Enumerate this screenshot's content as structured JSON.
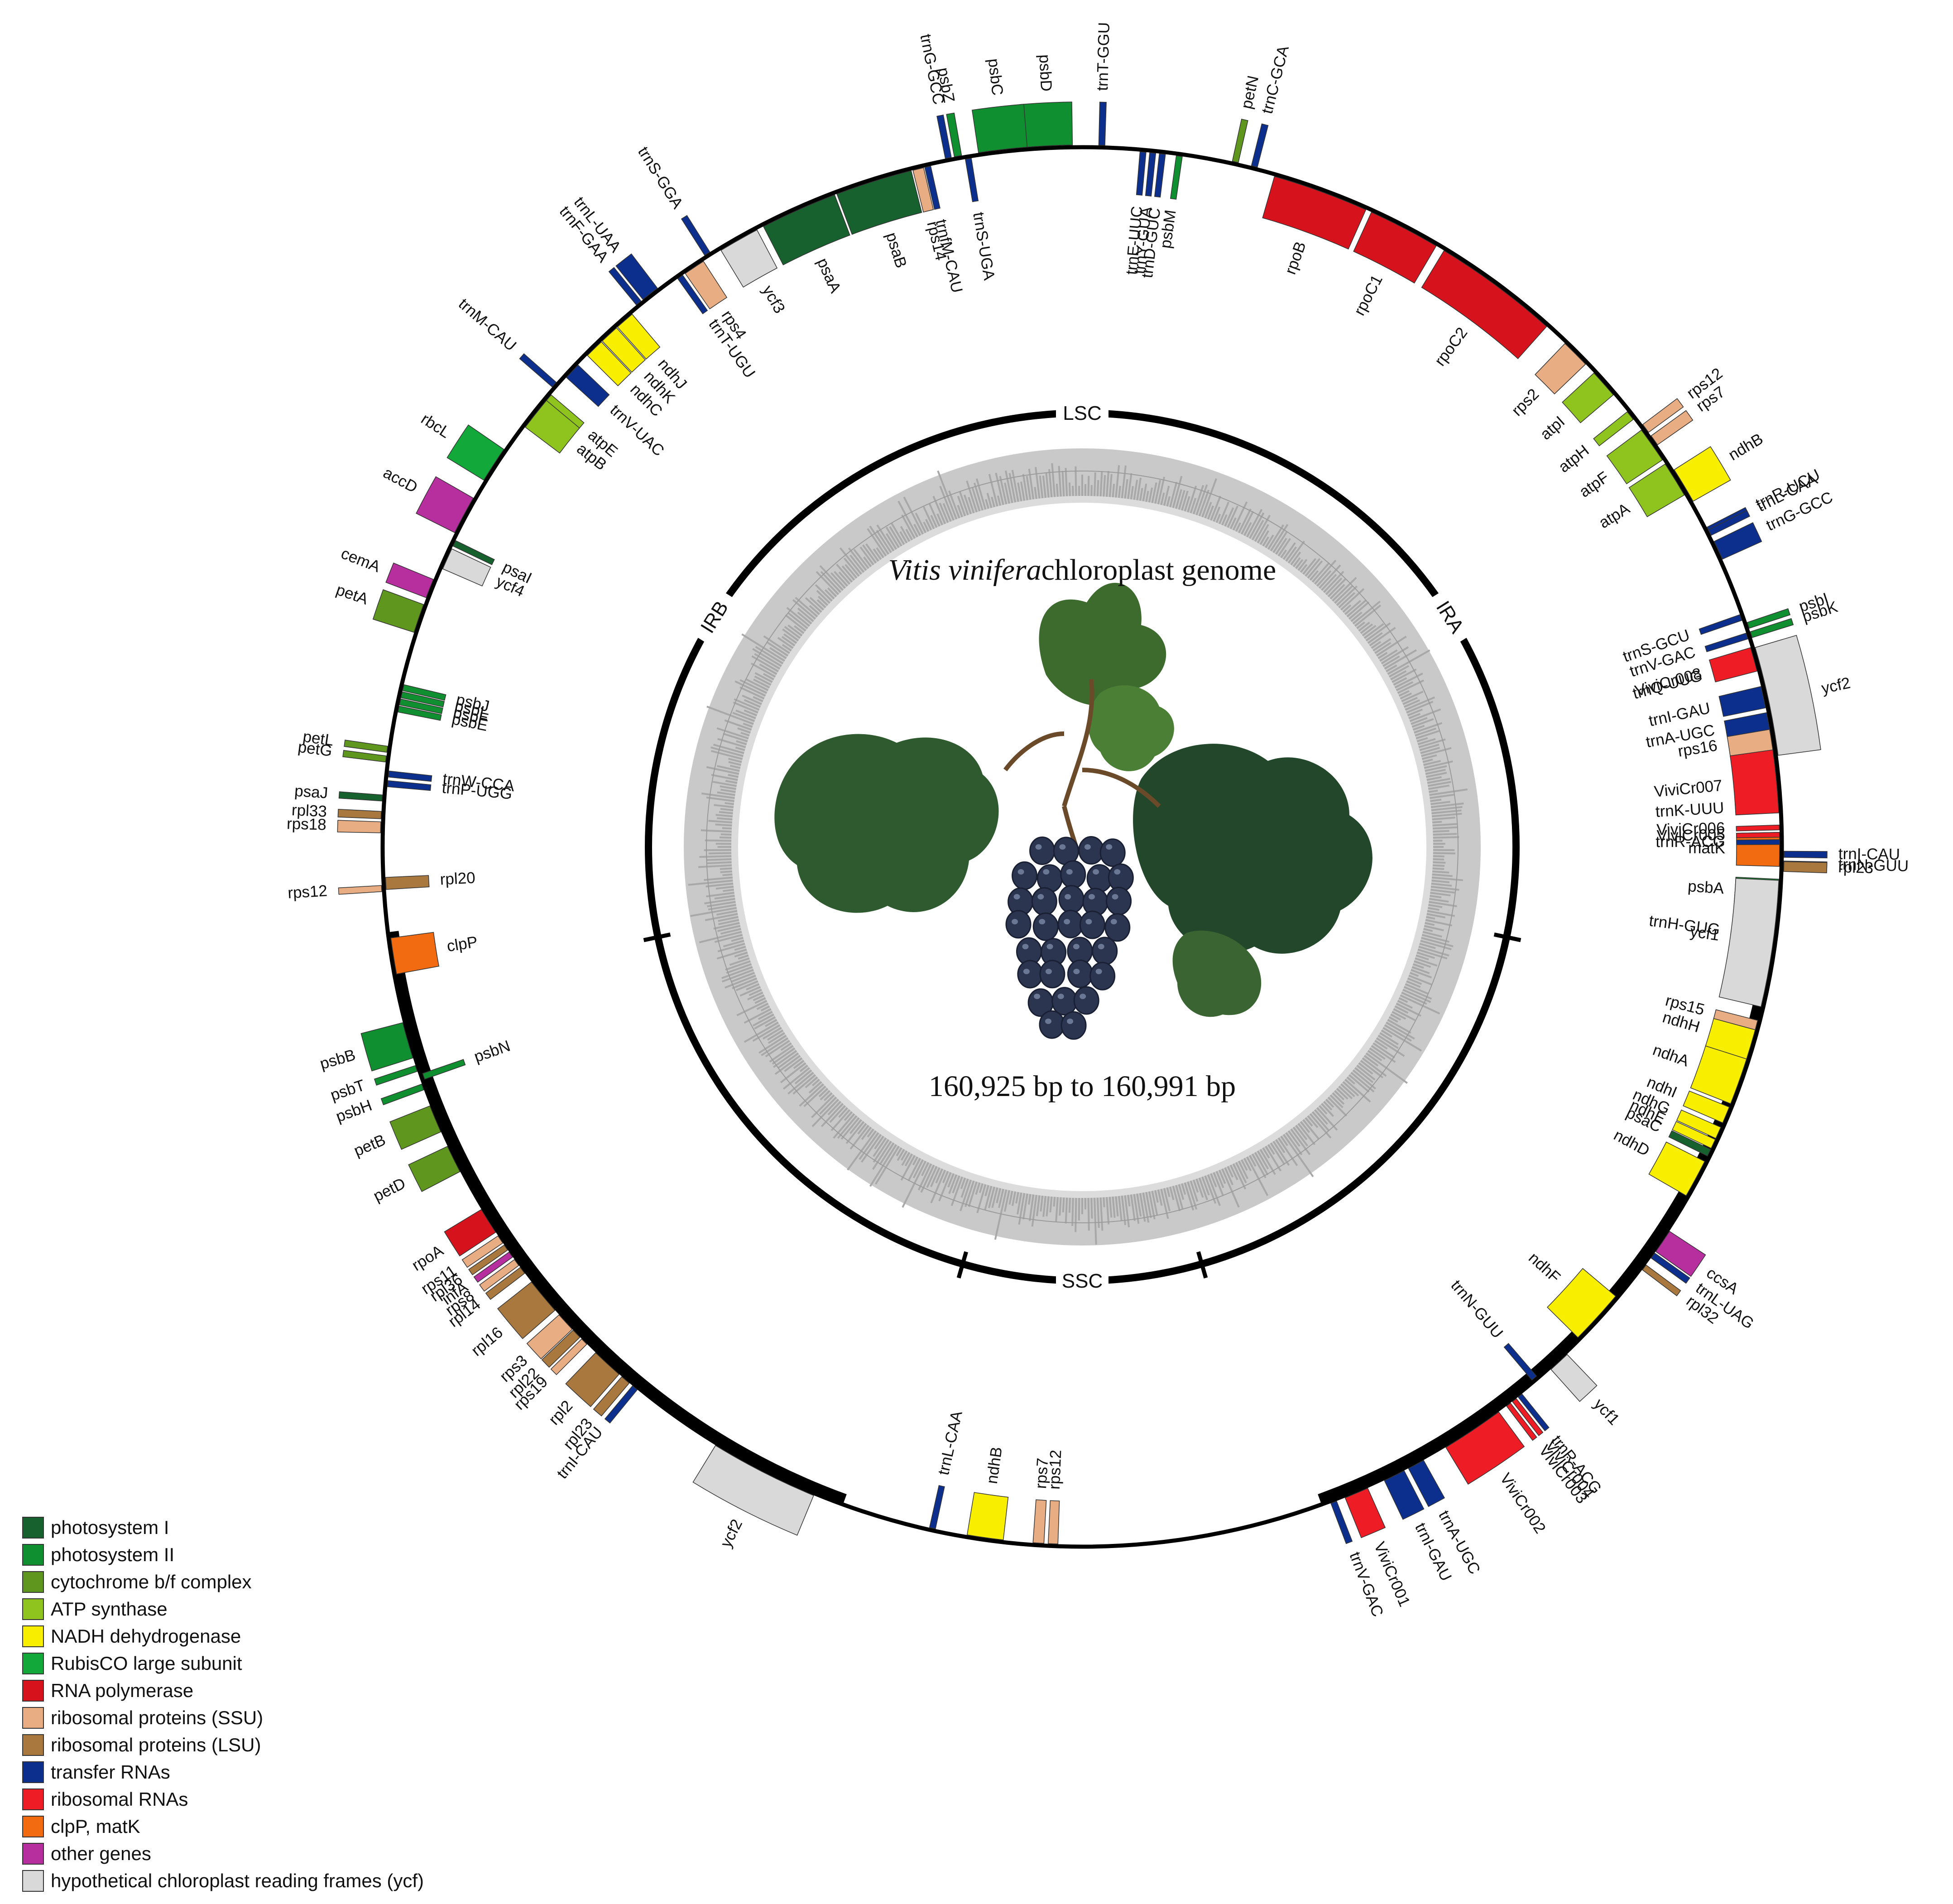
{
  "title": {
    "species": "Vitis vinifera",
    "rest": "chloroplast genome"
  },
  "size_label": "160,925 bp to 160,991 bp",
  "regions": [
    {
      "name": "LSC",
      "start": 0,
      "end": 0.68
    },
    {
      "name": "IRA",
      "start": 0.68,
      "end": 0.84
    },
    {
      "name": "SSC",
      "start": 0.84,
      "end": 1.16
    },
    {
      "name": "IRB",
      "start": 1.16,
      "end": 1.32
    }
  ],
  "categories": [
    {
      "key": "ps1",
      "label": "photosystem I",
      "color": "#17612f"
    },
    {
      "key": "ps2",
      "label": "photosystem II",
      "color": "#0f8f2f"
    },
    {
      "key": "cyt",
      "label": "cytochrome b/f complex",
      "color": "#5e961e"
    },
    {
      "key": "atp",
      "label": "ATP synthase",
      "color": "#8fc41f"
    },
    {
      "key": "ndh",
      "label": "NADH dehydrogenase",
      "color": "#f8ee00"
    },
    {
      "key": "rbc",
      "label": "RubisCO large subunit",
      "color": "#12a83a"
    },
    {
      "key": "rpo",
      "label": "RNA polymerase",
      "color": "#d6131c"
    },
    {
      "key": "ssu",
      "label": "ribosomal proteins (SSU)",
      "color": "#e8ad82"
    },
    {
      "key": "lsu",
      "label": "ribosomal proteins (LSU)",
      "color": "#a8783f"
    },
    {
      "key": "trna",
      "label": "transfer RNAs",
      "color": "#0c2f8e"
    },
    {
      "key": "rrna",
      "label": "ribosomal RNAs",
      "color": "#ee1c24"
    },
    {
      "key": "clp",
      "label": "clpP, matK",
      "color": "#f36b10"
    },
    {
      "key": "oth",
      "label": "other genes",
      "color": "#b72f9e"
    },
    {
      "key": "ycf",
      "label": "hypothetical chloroplast reading frames (ycf)",
      "color": "#d9d9d9"
    }
  ],
  "genes": [
    {
      "name": "trnH-GUG",
      "cat": "trna",
      "a": 97.5,
      "w": 0.5,
      "side": "in"
    },
    {
      "name": "psbA",
      "cat": "ps2",
      "a": 93.8,
      "w": 2.3,
      "side": "in"
    },
    {
      "name": "trnK-UUU",
      "cat": "trna",
      "a": 86.6,
      "w": 0.7,
      "side": "in"
    },
    {
      "name": "matK",
      "cat": "clp",
      "a": 90.2,
      "w": 2.8,
      "side": "in"
    },
    {
      "name": "rps16",
      "cat": "ssu",
      "a": 81.0,
      "w": 2.2,
      "side": "in"
    },
    {
      "name": "trnQ-UUG",
      "cat": "trna",
      "a": 74.6,
      "w": 0.5,
      "side": "in"
    },
    {
      "name": "psbK",
      "cat": "ps2",
      "a": 72.4,
      "w": 0.5,
      "side": "out"
    },
    {
      "name": "psbI",
      "cat": "ps2",
      "a": 71.6,
      "w": 0.5,
      "side": "out"
    },
    {
      "name": "trnS-GCU",
      "cat": "trna",
      "a": 70.8,
      "w": 0.5,
      "side": "in"
    },
    {
      "name": "trnG-GCC",
      "cat": "trna",
      "a": 65.0,
      "w": 1.6,
      "side": "out"
    },
    {
      "name": "trnR-UCU",
      "cat": "trna",
      "a": 63.2,
      "w": 0.6,
      "side": "out"
    },
    {
      "name": "atpA",
      "cat": "atp",
      "a": 58.2,
      "w": 3.0,
      "side": "in"
    },
    {
      "name": "atpF",
      "cat": "atp",
      "a": 54.8,
      "w": 3.0,
      "side": "in"
    },
    {
      "name": "atpH",
      "cat": "atp",
      "a": 51.8,
      "w": 0.8,
      "side": "in"
    },
    {
      "name": "atpI",
      "cat": "atp",
      "a": 48.4,
      "w": 2.4,
      "side": "in"
    },
    {
      "name": "rps2",
      "cat": "ssu",
      "a": 45.0,
      "w": 2.4,
      "side": "in"
    },
    {
      "name": "rpoC2",
      "cat": "rpo",
      "a": 36.5,
      "w": 10.5,
      "side": "in"
    },
    {
      "name": "rpoC1",
      "cat": "rpo",
      "a": 27.5,
      "w": 6.0,
      "side": "in"
    },
    {
      "name": "rpoB",
      "cat": "rpo",
      "a": 20.0,
      "w": 8.0,
      "side": "in"
    },
    {
      "name": "trnC-GCA",
      "cat": "trna",
      "a": 14.2,
      "w": 0.5,
      "side": "out"
    },
    {
      "name": "petN",
      "cat": "cyt",
      "a": 12.6,
      "w": 0.5,
      "side": "out"
    },
    {
      "name": "psbM",
      "cat": "ps2",
      "a": 8.0,
      "w": 0.5,
      "side": "in"
    },
    {
      "name": "trnD-GUC",
      "cat": "trna",
      "a": 6.6,
      "w": 0.5,
      "side": "in"
    },
    {
      "name": "trnY-GUA",
      "cat": "trna",
      "a": 5.8,
      "w": 0.5,
      "side": "in"
    },
    {
      "name": "trnE-UUC",
      "cat": "trna",
      "a": 5.0,
      "w": 0.5,
      "side": "in"
    },
    {
      "name": "trnT-GGU",
      "cat": "trna",
      "a": 1.6,
      "w": 0.5,
      "side": "out"
    },
    {
      "name": "psbD",
      "cat": "ps2",
      "a": -2.8,
      "w": 4.0,
      "side": "out"
    },
    {
      "name": "psbC",
      "cat": "ps2",
      "a": -6.5,
      "w": 4.0,
      "side": "out"
    },
    {
      "name": "trnS-UGA",
      "cat": "trna",
      "a": -9.4,
      "w": 0.5,
      "side": "in"
    },
    {
      "name": "psbZ",
      "cat": "ps2",
      "a": -10.2,
      "w": 0.6,
      "side": "out"
    },
    {
      "name": "trnG-GCC",
      "cat": "trna",
      "a": -11.0,
      "w": 0.5,
      "side": "out"
    },
    {
      "name": "trnfM-CAU",
      "cat": "trna",
      "a": -12.8,
      "w": 0.5,
      "side": "in"
    },
    {
      "name": "rps14",
      "cat": "ssu",
      "a": -13.6,
      "w": 0.9,
      "side": "in"
    },
    {
      "name": "psaB",
      "cat": "ps1",
      "a": -17.4,
      "w": 6.4,
      "side": "in"
    },
    {
      "name": "psaA",
      "cat": "ps1",
      "a": -24.0,
      "w": 6.4,
      "side": "in"
    },
    {
      "name": "ycf3",
      "cat": "ycf",
      "a": -29.5,
      "w": 3.4,
      "side": "in"
    },
    {
      "name": "trnS-GGA",
      "cat": "trna",
      "a": -32.3,
      "w": 0.5,
      "side": "out"
    },
    {
      "name": "rps4",
      "cat": "ssu",
      "a": -33.8,
      "w": 1.8,
      "side": "in"
    },
    {
      "name": "trnT-UGU",
      "cat": "trna",
      "a": -35.2,
      "w": 0.5,
      "side": "in"
    },
    {
      "name": "trnL-UAA",
      "cat": "trna",
      "a": -38.0,
      "w": 1.5,
      "side": "out"
    },
    {
      "name": "trnF-GAA",
      "cat": "trna",
      "a": -39.2,
      "w": 0.5,
      "side": "out"
    },
    {
      "name": "ndhJ",
      "cat": "ndh",
      "a": -41.0,
      "w": 1.6,
      "side": "in"
    },
    {
      "name": "ndhK",
      "cat": "ndh",
      "a": -42.7,
      "w": 1.6,
      "side": "in"
    },
    {
      "name": "ndhC",
      "cat": "ndh",
      "a": -44.4,
      "w": 1.6,
      "side": "in"
    },
    {
      "name": "trnV-UAC",
      "cat": "trna",
      "a": -47.0,
      "w": 1.4,
      "side": "in"
    },
    {
      "name": "trnM-CAU",
      "cat": "trna",
      "a": -48.8,
      "w": 0.5,
      "side": "out"
    },
    {
      "name": "atpE",
      "cat": "atp",
      "a": -50.0,
      "w": 0.8,
      "side": "in"
    },
    {
      "name": "atpB",
      "cat": "atp",
      "a": -51.6,
      "w": 2.8,
      "side": "in"
    },
    {
      "name": "rbcL",
      "cat": "rbc",
      "a": -57.0,
      "w": 3.0,
      "side": "out"
    },
    {
      "name": "accD",
      "cat": "oth",
      "a": -61.8,
      "w": 3.2,
      "side": "out"
    },
    {
      "name": "psaI",
      "cat": "ps1",
      "a": -64.2,
      "w": 0.5,
      "side": "in"
    },
    {
      "name": "ycf4",
      "cat": "ycf",
      "a": -65.6,
      "w": 1.8,
      "side": "in"
    },
    {
      "name": "cemA",
      "cat": "oth",
      "a": -68.4,
      "w": 1.6,
      "side": "out"
    },
    {
      "name": "petA",
      "cat": "cyt",
      "a": -71.0,
      "w": 2.4,
      "side": "out"
    },
    {
      "name": "psbJ",
      "cat": "ps2",
      "a": -76.8,
      "w": 0.5,
      "side": "in"
    },
    {
      "name": "psbL",
      "cat": "ps2",
      "a": -77.4,
      "w": 0.5,
      "side": "in"
    },
    {
      "name": "psbF",
      "cat": "ps2",
      "a": -78.0,
      "w": 0.5,
      "side": "in"
    },
    {
      "name": "psbE",
      "cat": "ps2",
      "a": -78.6,
      "w": 0.5,
      "side": "in"
    },
    {
      "name": "petL",
      "cat": "cyt",
      "a": -82.0,
      "w": 0.5,
      "side": "out"
    },
    {
      "name": "petG",
      "cat": "cyt",
      "a": -82.8,
      "w": 0.5,
      "side": "out"
    },
    {
      "name": "trnW-CCA",
      "cat": "trna",
      "a": -84.0,
      "w": 0.5,
      "side": "in"
    },
    {
      "name": "trnP-UGG",
      "cat": "trna",
      "a": -84.8,
      "w": 0.5,
      "side": "in"
    },
    {
      "name": "psaJ",
      "cat": "ps1",
      "a": -86.0,
      "w": 0.5,
      "side": "out"
    },
    {
      "name": "rpl33",
      "cat": "lsu",
      "a": -87.4,
      "w": 0.6,
      "side": "out"
    },
    {
      "name": "rps18",
      "cat": "ssu",
      "a": -88.4,
      "w": 0.9,
      "side": "out"
    },
    {
      "name": "rpl20",
      "cat": "lsu",
      "a": -93.0,
      "w": 1.0,
      "side": "in"
    },
    {
      "name": "rps12",
      "cat": "ssu",
      "a": -93.4,
      "w": 0.5,
      "side": "out"
    },
    {
      "name": "clpP",
      "cat": "clp",
      "a": -99.0,
      "w": 3.0,
      "side": "in"
    },
    {
      "name": "psbB",
      "cat": "ps2",
      "a": -106.0,
      "w": 3.0,
      "side": "out"
    },
    {
      "name": "psbT",
      "cat": "ps2",
      "a": -108.4,
      "w": 0.5,
      "side": "out"
    },
    {
      "name": "psbN",
      "cat": "ps2",
      "a": -109.2,
      "w": 0.5,
      "side": "in"
    },
    {
      "name": "psbH",
      "cat": "ps2",
      "a": -110.0,
      "w": 0.5,
      "side": "out"
    },
    {
      "name": "petB",
      "cat": "cyt",
      "a": -112.8,
      "w": 2.3,
      "side": "out"
    },
    {
      "name": "petD",
      "cat": "cyt",
      "a": -116.4,
      "w": 2.3,
      "side": "out"
    },
    {
      "name": "rpoA",
      "cat": "rpo",
      "a": -122.2,
      "w": 2.2,
      "side": "out"
    },
    {
      "name": "rps11",
      "cat": "ssu",
      "a": -124.0,
      "w": 0.7,
      "side": "out"
    },
    {
      "name": "rpl36",
      "cat": "lsu",
      "a": -124.8,
      "w": 0.5,
      "side": "out"
    },
    {
      "name": "infA",
      "cat": "oth",
      "a": -125.5,
      "w": 0.5,
      "side": "out"
    },
    {
      "name": "rps8",
      "cat": "ssu",
      "a": -126.3,
      "w": 0.6,
      "side": "out"
    },
    {
      "name": "rpl14",
      "cat": "lsu",
      "a": -127.1,
      "w": 0.6,
      "side": "out"
    },
    {
      "name": "rpl16",
      "cat": "lsu",
      "a": -129.8,
      "w": 3.0,
      "side": "out"
    },
    {
      "name": "rps3",
      "cat": "ssu",
      "a": -132.6,
      "w": 1.6,
      "side": "out"
    },
    {
      "name": "rpl22",
      "cat": "lsu",
      "a": -133.9,
      "w": 0.8,
      "side": "out"
    },
    {
      "name": "rps19",
      "cat": "ssu",
      "a": -134.8,
      "w": 0.6,
      "side": "out"
    },
    {
      "name": "rpl2",
      "cat": "lsu",
      "a": -137.4,
      "w": 2.6,
      "side": "out"
    },
    {
      "name": "rpl23",
      "cat": "lsu",
      "a": -139.4,
      "w": 0.8,
      "side": "out"
    },
    {
      "name": "trnI-CAU",
      "cat": "trna",
      "a": -140.4,
      "w": 0.5,
      "side": "out"
    },
    {
      "name": "ycf2",
      "cat": "ycf",
      "a": -153.0,
      "w": 9.0,
      "side": "out"
    },
    {
      "name": "trnL-CAA",
      "cat": "trna",
      "a": -167.6,
      "w": 0.5,
      "side": "in"
    },
    {
      "name": "ndhB",
      "cat": "ndh",
      "a": -172.0,
      "w": 3.0,
      "side": "in"
    },
    {
      "name": "rps7",
      "cat": "ssu",
      "a": -176.4,
      "w": 0.9,
      "side": "in"
    },
    {
      "name": "rps12",
      "cat": "ssu",
      "a": -177.6,
      "w": 0.8,
      "side": "in"
    },
    {
      "name": "trnV-GAC",
      "cat": "trna",
      "a": 159.0,
      "w": 0.5,
      "side": "out"
    },
    {
      "name": "ViviCr001",
      "cat": "rrna",
      "a": 157.0,
      "w": 2.0,
      "side": "out"
    },
    {
      "name": "trnI-GAU",
      "cat": "trna",
      "a": 153.6,
      "w": 1.8,
      "side": "out"
    },
    {
      "name": "trnA-UGC",
      "cat": "trna",
      "a": 151.6,
      "w": 1.4,
      "side": "out"
    },
    {
      "name": "ViviCr002",
      "cat": "rrna",
      "a": 146.2,
      "w": 5.2,
      "side": "out"
    },
    {
      "name": "ViviCr003",
      "cat": "rrna",
      "a": 142.6,
      "w": 0.4,
      "side": "out"
    },
    {
      "name": "ViviCr004",
      "cat": "rrna",
      "a": 142.0,
      "w": 0.4,
      "side": "out"
    },
    {
      "name": "trnR-ACG",
      "cat": "trna",
      "a": 141.4,
      "w": 0.4,
      "side": "out"
    },
    {
      "name": "trnN-GUU",
      "cat": "trna",
      "a": 139.6,
      "w": 0.5,
      "side": "in"
    },
    {
      "name": "ycf1",
      "cat": "ycf",
      "a": 137.2,
      "w": 1.8,
      "side": "out"
    },
    {
      "name": "ndhF",
      "cat": "ndh",
      "a": 132.4,
      "w": 4.6,
      "side": "in"
    },
    {
      "name": "rpl32",
      "cat": "lsu",
      "a": 126.8,
      "w": 0.5,
      "side": "out"
    },
    {
      "name": "trnL-UAG",
      "cat": "trna",
      "a": 125.6,
      "w": 0.5,
      "side": "out"
    },
    {
      "name": "ccsA",
      "cat": "oth",
      "a": 124.2,
      "w": 2.0,
      "side": "out"
    },
    {
      "name": "ndhD",
      "cat": "ndh",
      "a": 118.4,
      "w": 3.2,
      "side": "in"
    },
    {
      "name": "psaC",
      "cat": "ps1",
      "a": 116.0,
      "w": 0.6,
      "side": "in"
    },
    {
      "name": "ndhE",
      "cat": "ndh",
      "a": 115.2,
      "w": 0.8,
      "side": "in"
    },
    {
      "name": "ndhG",
      "cat": "ndh",
      "a": 114.2,
      "w": 1.0,
      "side": "in"
    },
    {
      "name": "ndhI",
      "cat": "ndh",
      "a": 112.6,
      "w": 1.4,
      "side": "in"
    },
    {
      "name": "ndhA",
      "cat": "ndh",
      "a": 109.6,
      "w": 4.0,
      "side": "in"
    },
    {
      "name": "ndhH",
      "cat": "ndh",
      "a": 106.4,
      "w": 2.6,
      "side": "in"
    },
    {
      "name": "rps15",
      "cat": "ssu",
      "a": 104.8,
      "w": 0.8,
      "side": "in"
    },
    {
      "name": "ycf1",
      "cat": "ycf",
      "a": 98.0,
      "w": 10.5,
      "side": "in"
    },
    {
      "name": "trnN-GUU",
      "cat": "trna",
      "a": 91.4,
      "w": 0.5,
      "side": "out"
    },
    {
      "name": "trnR-ACG",
      "cat": "trna",
      "a": 89.6,
      "w": 0.4,
      "side": "in"
    },
    {
      "name": "ViviCr005",
      "cat": "rrna",
      "a": 89.0,
      "w": 0.4,
      "side": "in"
    },
    {
      "name": "ViviCr006",
      "cat": "rrna",
      "a": 88.4,
      "w": 0.4,
      "side": "in"
    },
    {
      "name": "ViviCr007",
      "cat": "rrna",
      "a": 84.6,
      "w": 5.2,
      "side": "in"
    },
    {
      "name": "trnA-UGC",
      "cat": "trna",
      "a": 79.6,
      "w": 1.4,
      "side": "in"
    },
    {
      "name": "trnI-GAU",
      "cat": "trna",
      "a": 77.6,
      "w": 1.8,
      "side": "in"
    },
    {
      "name": "ViviCr008",
      "cat": "rrna",
      "a": 74.4,
      "w": 2.0,
      "side": "in"
    },
    {
      "name": "trnV-GAC",
      "cat": "trna",
      "a": 72.4,
      "w": 0.5,
      "side": "in"
    },
    {
      "name": "rps12",
      "cat": "ssu",
      "a": 53.4,
      "w": 0.8,
      "side": "out"
    },
    {
      "name": "rps7",
      "cat": "ssu",
      "a": 54.6,
      "w": 0.9,
      "side": "out"
    },
    {
      "name": "ndhB",
      "cat": "ndh",
      "a": 59.0,
      "w": 3.0,
      "side": "out"
    },
    {
      "name": "trnL-CAA",
      "cat": "trna",
      "a": 63.4,
      "w": 0.5,
      "side": "out"
    },
    {
      "name": "ycf2",
      "cat": "ycf",
      "a": 78.0,
      "w": 9.0,
      "side": "out"
    },
    {
      "name": "trnI-CAU",
      "cat": "trna",
      "a": 90.6,
      "w": 0.5,
      "side": "out"
    },
    {
      "name": "rpl23",
      "cat": "lsu",
      "a": 91.6,
      "w": 0.8,
      "side": "out"
    }
  ]
}
